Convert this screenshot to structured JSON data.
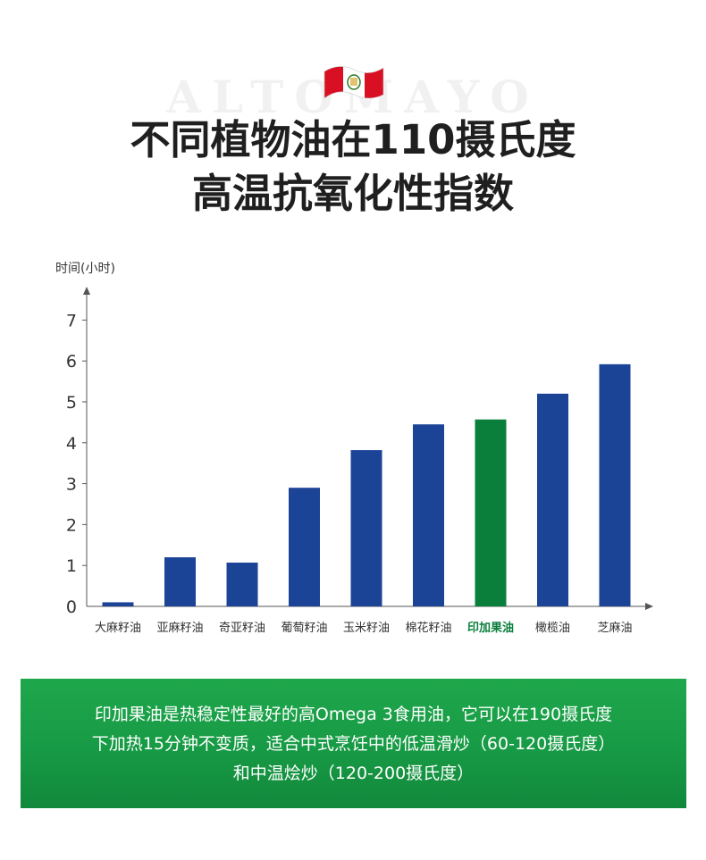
{
  "watermark": "ALTOMAYO",
  "title": {
    "line1": "不同植物油在110摄氏度",
    "line2": "高温抗氧化性指数"
  },
  "colors": {
    "bar": "#1c4496",
    "highlight": "#0a7f3c",
    "banner": "#1a9f48",
    "flag_red": "#d91023"
  },
  "chart_data": {
    "type": "bar",
    "ylabel": "时间(小时)",
    "ylim": [
      0,
      7
    ],
    "yticks": [
      0,
      1,
      2,
      3,
      4,
      5,
      6,
      7
    ],
    "categories": [
      "大麻籽油",
      "亚麻籽油",
      "奇亚籽油",
      "葡萄籽油",
      "玉米籽油",
      "棉花籽油",
      "印加果油",
      "橄榄油",
      "芝麻油"
    ],
    "values": [
      0.1,
      1.2,
      1.07,
      2.9,
      3.82,
      4.45,
      4.57,
      5.2,
      5.92
    ],
    "highlight": "印加果油",
    "grid": false
  },
  "banner": {
    "line1": "印加果油是热稳定性最好的高Omega 3食用油，它可以在190摄氏度",
    "line2": "下加热15分钟不变质，适合中式烹饪中的低温滑炒（60-120摄氏度）",
    "line3": "和中温烩炒（120-200摄氏度）"
  }
}
